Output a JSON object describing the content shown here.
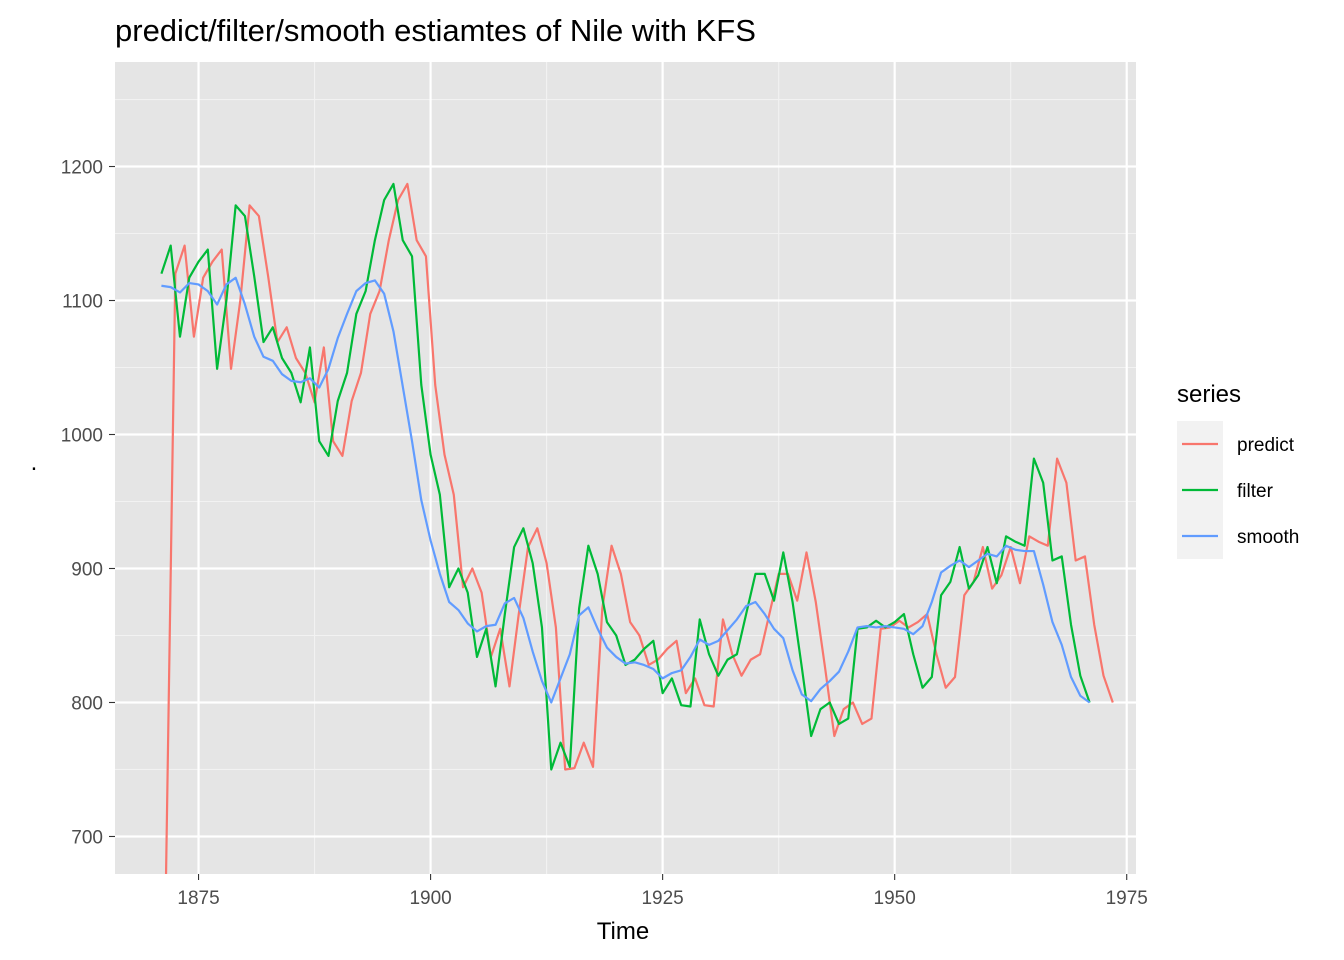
{
  "chart_data": {
    "type": "line",
    "title": "predict/filter/smooth estiamtes of Nile with KFS",
    "xlabel": "Time",
    "ylabel": ".",
    "xlim": [
      1866,
      1976
    ],
    "ylim": [
      672,
      1278
    ],
    "x_ticks": [
      1875,
      1900,
      1925,
      1950,
      1975
    ],
    "y_ticks": [
      700,
      800,
      900,
      1000,
      1100,
      1200
    ],
    "x_tick_labels": [
      "1875",
      "1900",
      "1925",
      "1950",
      "1975"
    ],
    "y_tick_labels": [
      "700",
      "800",
      "900",
      "1000",
      "1100",
      "1200"
    ],
    "grid": true,
    "legend": {
      "title": "series",
      "position": "right"
    },
    "series": [
      {
        "name": "predict",
        "color": "#F8766D",
        "x_start": 1871.5,
        "values": [
          672,
          1120,
          1141,
          1073,
          1117,
          1129,
          1138,
          1049,
          1100,
          1171,
          1163,
          1118,
          1069,
          1080,
          1057,
          1046,
          1024,
          1065,
          995,
          984,
          1025,
          1046,
          1090,
          1107,
          1145,
          1175,
          1187,
          1145,
          1133,
          1037,
          985,
          955,
          886,
          900,
          882,
          834,
          855,
          812,
          866,
          916,
          930,
          904,
          856,
          750,
          751,
          770,
          752,
          870,
          917,
          896,
          860,
          850,
          828,
          832,
          840,
          846,
          807,
          818,
          798,
          797,
          862,
          836,
          820,
          832,
          836,
          866,
          896,
          896,
          876,
          912,
          875,
          826,
          775,
          795,
          800,
          784,
          788,
          855,
          856,
          861,
          856,
          860,
          866,
          836,
          811,
          819,
          880,
          890,
          916,
          885,
          895,
          916,
          889,
          924,
          920,
          917,
          982,
          964,
          906,
          909,
          858,
          820,
          800
        ]
      },
      {
        "name": "filter",
        "color": "#00BA38",
        "x_start": 1871,
        "values": [
          1120,
          1141,
          1073,
          1117,
          1129,
          1138,
          1049,
          1100,
          1171,
          1163,
          1118,
          1069,
          1080,
          1057,
          1046,
          1024,
          1065,
          995,
          984,
          1025,
          1046,
          1090,
          1107,
          1145,
          1175,
          1187,
          1145,
          1133,
          1037,
          985,
          955,
          886,
          900,
          882,
          834,
          855,
          812,
          866,
          916,
          930,
          904,
          856,
          750,
          770,
          752,
          870,
          917,
          896,
          860,
          850,
          828,
          832,
          840,
          846,
          807,
          818,
          798,
          797,
          862,
          836,
          820,
          832,
          836,
          866,
          896,
          896,
          876,
          912,
          875,
          826,
          775,
          795,
          800,
          784,
          788,
          855,
          856,
          861,
          856,
          860,
          866,
          836,
          811,
          819,
          880,
          890,
          916,
          885,
          895,
          916,
          889,
          924,
          920,
          917,
          982,
          964,
          906,
          909,
          858,
          820,
          800
        ]
      },
      {
        "name": "smooth",
        "color": "#619CFF",
        "x_start": 1871,
        "values": [
          1111,
          1110,
          1106,
          1113,
          1112,
          1107,
          1097,
          1112,
          1117,
          1097,
          1073,
          1058,
          1055,
          1045,
          1040,
          1039,
          1042,
          1035,
          1049,
          1072,
          1090,
          1107,
          1113,
          1115,
          1105,
          1077,
          1036,
          995,
          951,
          921,
          896,
          875,
          869,
          859,
          853,
          857,
          858,
          874,
          878,
          863,
          838,
          816,
          800,
          818,
          836,
          865,
          871,
          855,
          841,
          834,
          829,
          830,
          828,
          825,
          818,
          822,
          824,
          834,
          847,
          843,
          846,
          854,
          862,
          872,
          875,
          866,
          855,
          848,
          824,
          806,
          801,
          810,
          816,
          823,
          838,
          856,
          857,
          856,
          857,
          856,
          855,
          851,
          857,
          875,
          897,
          902,
          906,
          901,
          906,
          911,
          909,
          917,
          914,
          913,
          913,
          888,
          860,
          843,
          819,
          805,
          800
        ]
      }
    ]
  }
}
